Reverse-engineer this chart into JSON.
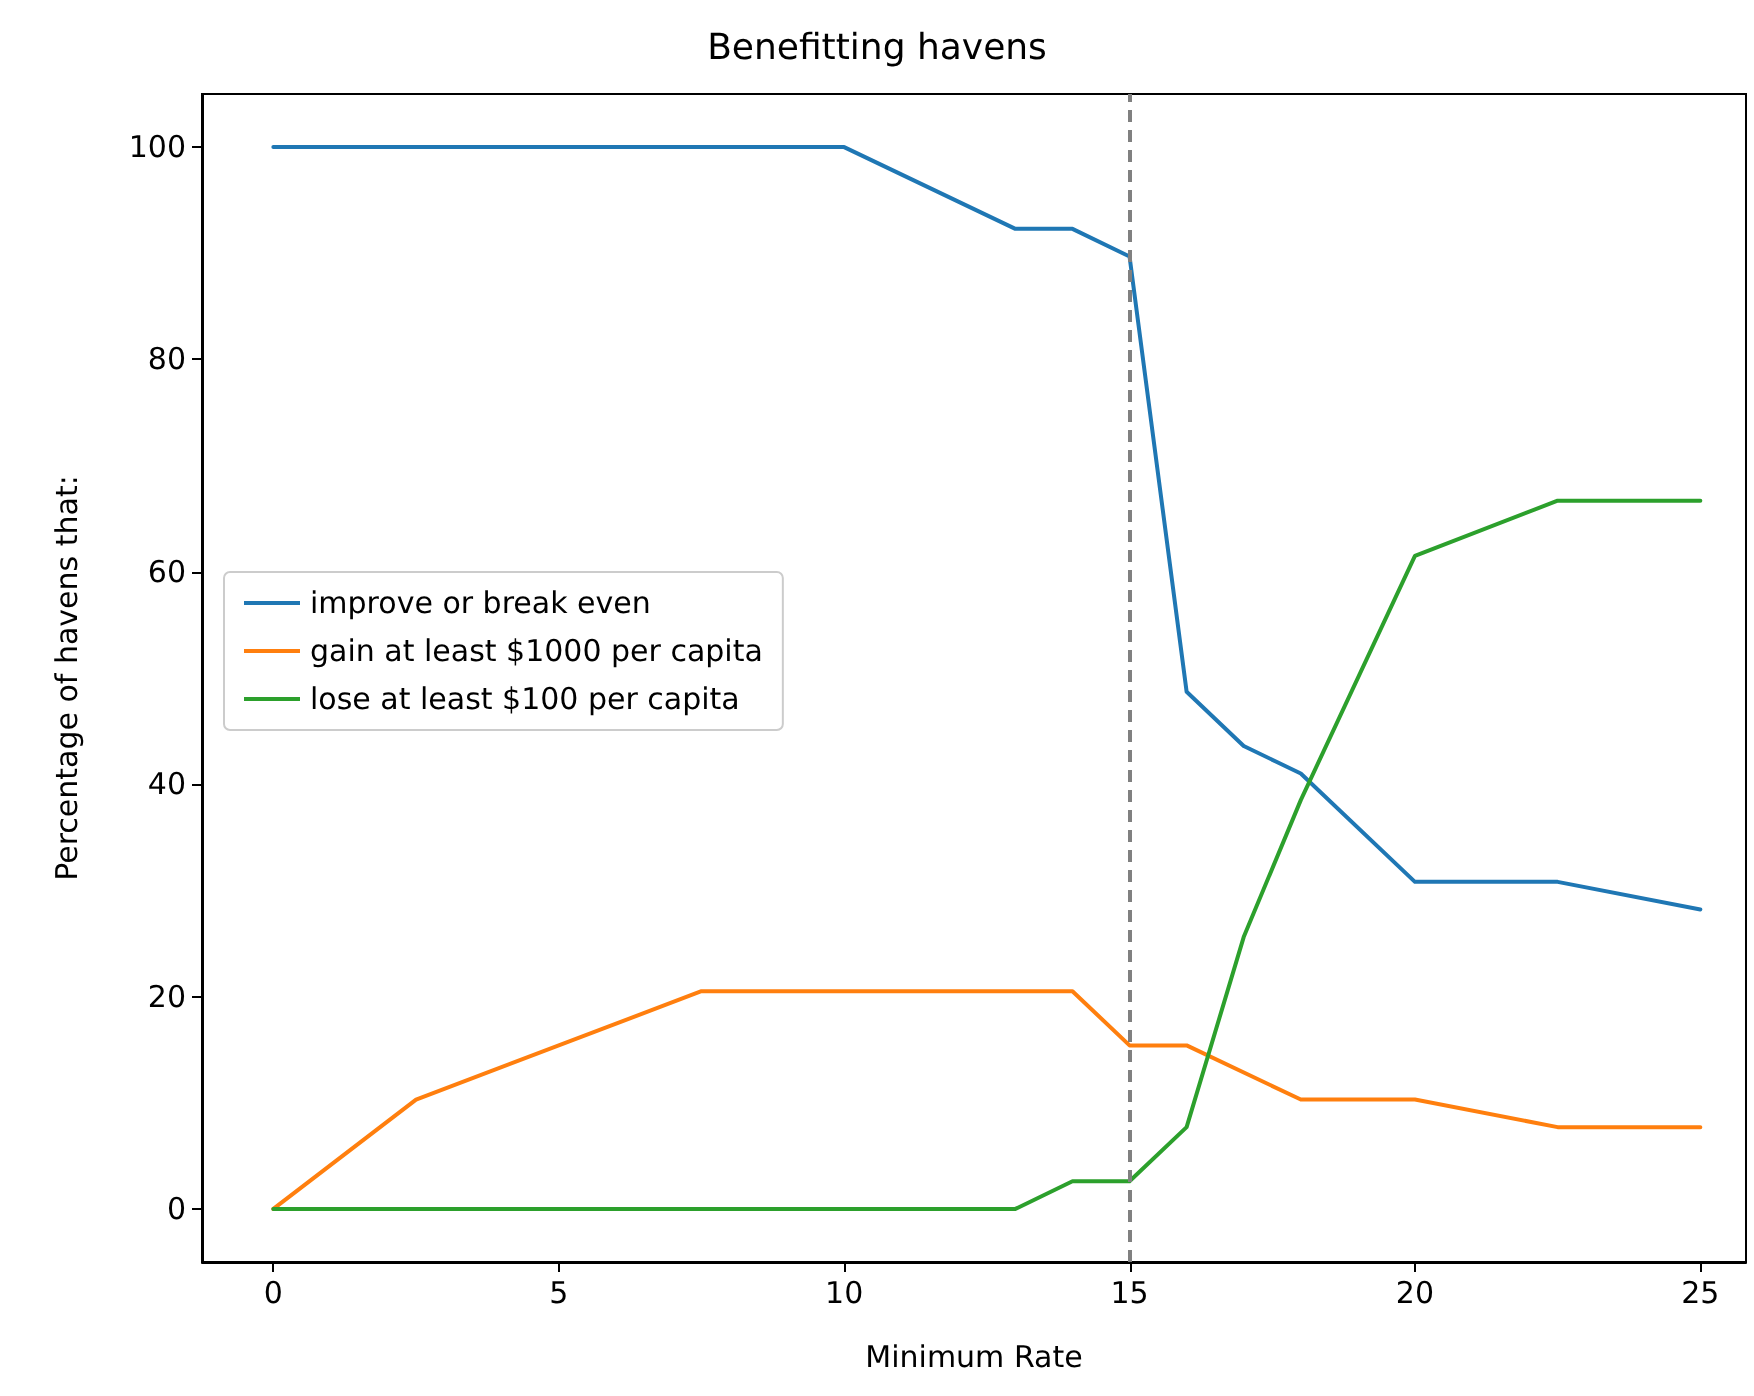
{
  "chart_data": {
    "type": "line",
    "title": "Benefitting havens",
    "xlabel": "Minimum Rate",
    "ylabel": "Percentage of havens that:",
    "xlim": [
      -1.25,
      25.8
    ],
    "xticks": [
      0,
      5,
      10,
      15,
      20,
      25
    ],
    "ylim": [
      -5,
      105
    ],
    "yticks": [
      0,
      20,
      40,
      60,
      80,
      100
    ],
    "grid": false,
    "legend": "left",
    "marker": "none",
    "line_style": "solid",
    "ref_lines": [
      {
        "axis": "x",
        "value": 15,
        "color": "#808080",
        "line_style": "dashed"
      }
    ],
    "series": [
      {
        "name": "improve or break even",
        "color": "#1f77b4",
        "x": [
          0,
          10,
          13,
          14,
          15,
          16,
          17,
          18,
          20,
          22.5,
          25
        ],
        "values": [
          100,
          100,
          92.3,
          92.3,
          89.7,
          48.7,
          43.6,
          41,
          30.8,
          30.8,
          28.2
        ]
      },
      {
        "name": "gain at least $1000 per capita",
        "color": "#ff7f0e",
        "x": [
          0,
          2.5,
          7.5,
          14,
          15,
          16,
          18,
          20,
          22.5,
          25
        ],
        "values": [
          0,
          10.3,
          20.5,
          20.5,
          15.4,
          15.4,
          10.3,
          10.3,
          7.7,
          7.7
        ]
      },
      {
        "name": "lose at least $100 per capita",
        "color": "#2ca02c",
        "x": [
          0,
          13,
          14,
          15,
          16,
          17,
          18,
          20,
          22.5,
          25
        ],
        "values": [
          0,
          0,
          2.6,
          2.6,
          7.7,
          25.6,
          38.5,
          61.5,
          66.7,
          66.7
        ]
      }
    ]
  }
}
